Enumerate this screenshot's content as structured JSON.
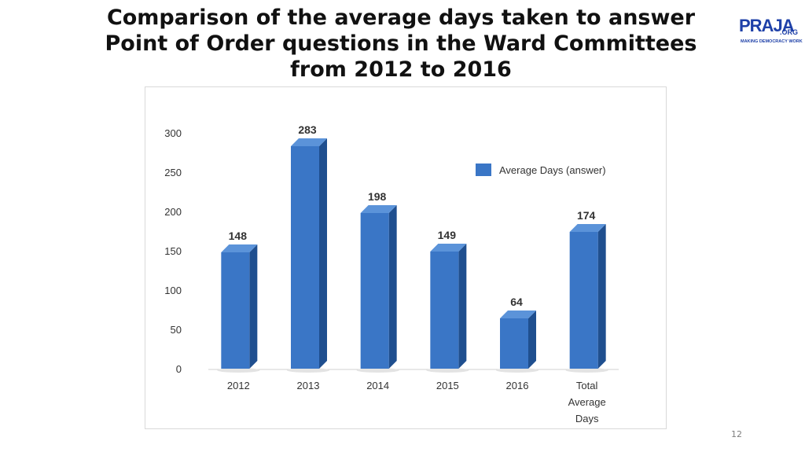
{
  "slide": {
    "title_lines": [
      "Comparison of the average days taken to answer",
      "Point of Order questions in the Ward Committees",
      "from 2012 to 2016"
    ],
    "page_number": "12"
  },
  "logo": {
    "word": "PRAJA",
    "suffix": ".ORG",
    "tagline": "MAKING DEMOCRACY WORK",
    "color": "#1e40a8"
  },
  "chart_data": {
    "type": "bar",
    "categories": [
      "2012",
      "2013",
      "2014",
      "2015",
      "2016",
      "Total Average Days"
    ],
    "series": [
      {
        "name": "Average Days (answer)",
        "values": [
          148,
          283,
          198,
          149,
          64,
          174
        ],
        "color": "#3a76c6"
      }
    ],
    "data_labels": [
      "148",
      "283",
      "198",
      "149",
      "64",
      "174"
    ],
    "yticks": [
      0,
      50,
      100,
      150,
      200,
      250,
      300
    ],
    "ylim": [
      0,
      300
    ],
    "legend_position": "right",
    "grid": false,
    "style": "3d-column"
  }
}
